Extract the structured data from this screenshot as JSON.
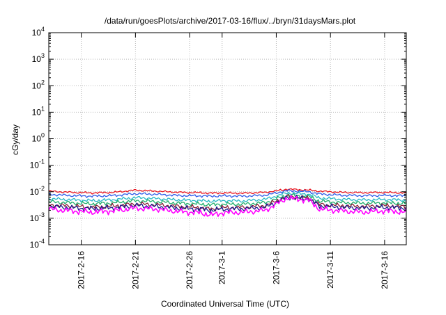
{
  "chart_data": {
    "type": "line",
    "title": "/data/run/goesPlots/archive/2017-03-16/flux/../bryn/31daysMars.plot",
    "xlabel": "Coordinated Universal Time (UTC)",
    "ylabel": "cGy/day",
    "y_scale": "log",
    "ylim": [
      0.0001,
      10000
    ],
    "y_ticks": [
      {
        "base": "10",
        "exp": "-4"
      },
      {
        "base": "10",
        "exp": "-3"
      },
      {
        "base": "10",
        "exp": "-2"
      },
      {
        "base": "10",
        "exp": "-1"
      },
      {
        "base": "10",
        "exp": "0"
      },
      {
        "base": "10",
        "exp": "1"
      },
      {
        "base": "10",
        "exp": "2"
      },
      {
        "base": "10",
        "exp": "3"
      },
      {
        "base": "10",
        "exp": "4"
      }
    ],
    "xlim": [
      "2017-02-13",
      "2017-03-18"
    ],
    "x_ticks": [
      "2017-2-16",
      "2017-2-21",
      "2017-2-26",
      "2017-3-1",
      "2017-3-6",
      "2017-3-11",
      "2017-3-16"
    ],
    "x_tick_dates": [
      "2017-02-16",
      "2017-02-21",
      "2017-02-26",
      "2017-03-01",
      "2017-03-06",
      "2017-03-11",
      "2017-03-16"
    ],
    "grid": true,
    "x": [
      "2017-02-13",
      "2017-02-15",
      "2017-02-17",
      "2017-02-19",
      "2017-02-21",
      "2017-02-23",
      "2017-02-25",
      "2017-02-27",
      "2017-02-28",
      "2017-03-01",
      "2017-03-03",
      "2017-03-05",
      "2017-03-07",
      "2017-03-09",
      "2017-03-10",
      "2017-03-12",
      "2017-03-14",
      "2017-03-16",
      "2017-03-18"
    ],
    "series": [
      {
        "color": "#e8141e",
        "values": [
          0.0105,
          0.0095,
          0.009,
          0.0095,
          0.0115,
          0.0105,
          0.0095,
          0.0092,
          0.0088,
          0.009,
          0.0088,
          0.0095,
          0.0125,
          0.0115,
          0.0105,
          0.0095,
          0.0092,
          0.0095,
          0.009
        ]
      },
      {
        "color": "#2c5be8",
        "values": [
          0.008,
          0.0072,
          0.0068,
          0.0072,
          0.0085,
          0.008,
          0.0072,
          0.007,
          0.0068,
          0.007,
          0.0068,
          0.0074,
          0.011,
          0.01,
          0.0082,
          0.0074,
          0.0071,
          0.0073,
          0.007
        ]
      },
      {
        "color": "#27b8c4",
        "values": [
          0.0055,
          0.005,
          0.0046,
          0.005,
          0.006,
          0.0055,
          0.0049,
          0.0046,
          0.0044,
          0.0046,
          0.0045,
          0.0052,
          0.009,
          0.008,
          0.0058,
          0.0052,
          0.0049,
          0.0051,
          0.0048
        ]
      },
      {
        "color": "#1fae6a",
        "values": [
          0.0042,
          0.0038,
          0.0035,
          0.0038,
          0.0046,
          0.0042,
          0.0037,
          0.0034,
          0.0032,
          0.0034,
          0.0034,
          0.0039,
          0.0075,
          0.0066,
          0.0044,
          0.0039,
          0.0037,
          0.0038,
          0.0036
        ]
      },
      {
        "color": "#8b1f3a",
        "values": [
          0.0032,
          0.0029,
          0.0026,
          0.0029,
          0.0035,
          0.0032,
          0.0028,
          0.0025,
          0.0022,
          0.0025,
          0.0026,
          0.003,
          0.0066,
          0.0057,
          0.0033,
          0.003,
          0.0028,
          0.003,
          0.0027
        ]
      },
      {
        "color": "#1a1a8c",
        "values": [
          0.0028,
          0.0025,
          0.0023,
          0.0025,
          0.003,
          0.0028,
          0.0024,
          0.0022,
          0.002,
          0.0022,
          0.0023,
          0.0026,
          0.0062,
          0.0053,
          0.0029,
          0.0026,
          0.0024,
          0.0026,
          0.0024
        ]
      },
      {
        "color": "#ff00ff",
        "values": [
          0.0022,
          0.0019,
          0.0017,
          0.0019,
          0.0024,
          0.0022,
          0.0018,
          0.0016,
          0.0013,
          0.0016,
          0.0017,
          0.002,
          0.0058,
          0.0048,
          0.0022,
          0.0019,
          0.0017,
          0.0019,
          0.0017
        ]
      }
    ]
  }
}
